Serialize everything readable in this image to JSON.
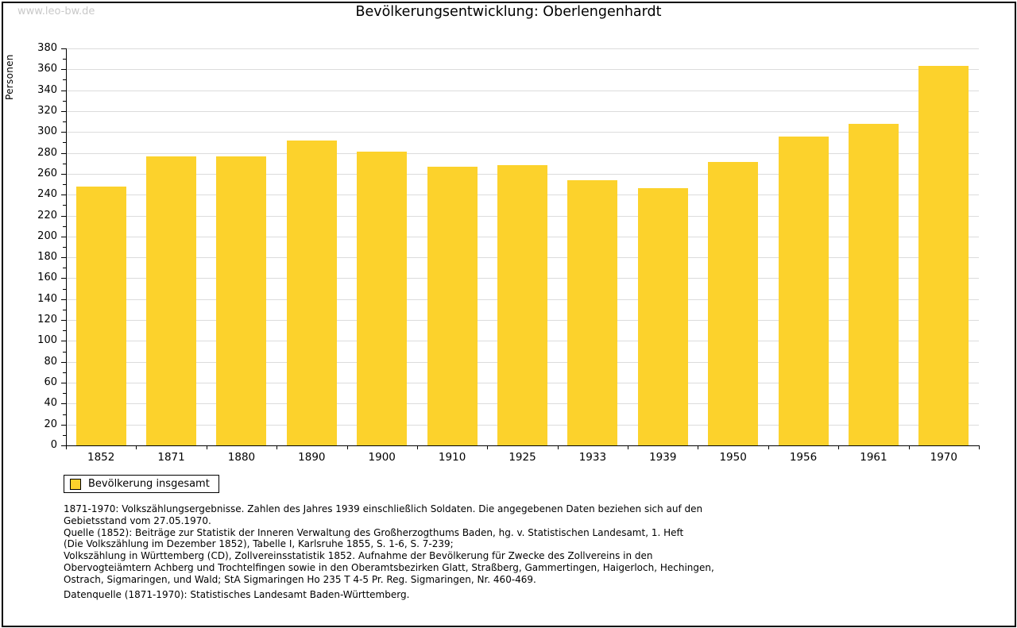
{
  "watermark": "www.leo-bw.de",
  "header": {
    "title": "Bevölkerungsentwicklung: Oberlengenhardt"
  },
  "chart_data": {
    "type": "bar",
    "title": "Bevölkerungsentwicklung: Oberlengenhardt",
    "xlabel": "",
    "ylabel": "Personen",
    "ylim": [
      0,
      380
    ],
    "ytick_step": 20,
    "minor_tick_step": 10,
    "grid": true,
    "legend_position": "bottom-left",
    "bar_color": "#fcd22c",
    "categories": [
      "1852",
      "1871",
      "1880",
      "1890",
      "1900",
      "1910",
      "1925",
      "1933",
      "1939",
      "1950",
      "1956",
      "1961",
      "1970"
    ],
    "values": [
      248,
      277,
      277,
      292,
      281,
      267,
      268,
      254,
      246,
      271,
      296,
      308,
      363
    ],
    "series_name": "Bevölkerung insgesamt"
  },
  "legend": {
    "label": "Bevölkerung insgesamt"
  },
  "footnote": {
    "text": "1871-1970: Volkszählungsergebnisse. Zahlen des Jahres 1939 einschließlich Soldaten. Die angegebenen Daten beziehen sich auf den\nGebietsstand vom 27.05.1970.\nQuelle (1852): Beiträge zur Statistik der Inneren Verwaltung des Großherzogthums Baden, hg. v. Statistischen Landesamt, 1. Heft\n(Die Volkszählung im Dezember 1852), Tabelle I, Karlsruhe 1855, S. 1-6, S. 7-239;\nVolkszählung in Württemberg (CD), Zollvereinsstatistik 1852. Aufnahme der Bevölkerung für Zwecke des Zollvereins in den\nObervogteiämtern Achberg und Trochtelfingen sowie in den Oberamtsbezirken Glatt, Straßberg, Gammertingen, Haigerloch, Hechingen,\nOstrach, Sigmaringen, und Wald; StA Sigmaringen Ho 235 T 4-5 Pr. Reg. Sigmaringen, Nr. 460-469.",
    "datasource": "Datenquelle (1871-1970): Statistisches Landesamt Baden-Württemberg."
  },
  "colors": {
    "bar": "#fcd22c",
    "gridline": "#dcdcdc",
    "axis": "#000000",
    "watermark": "#c9c9c9",
    "frame": "#000000"
  }
}
